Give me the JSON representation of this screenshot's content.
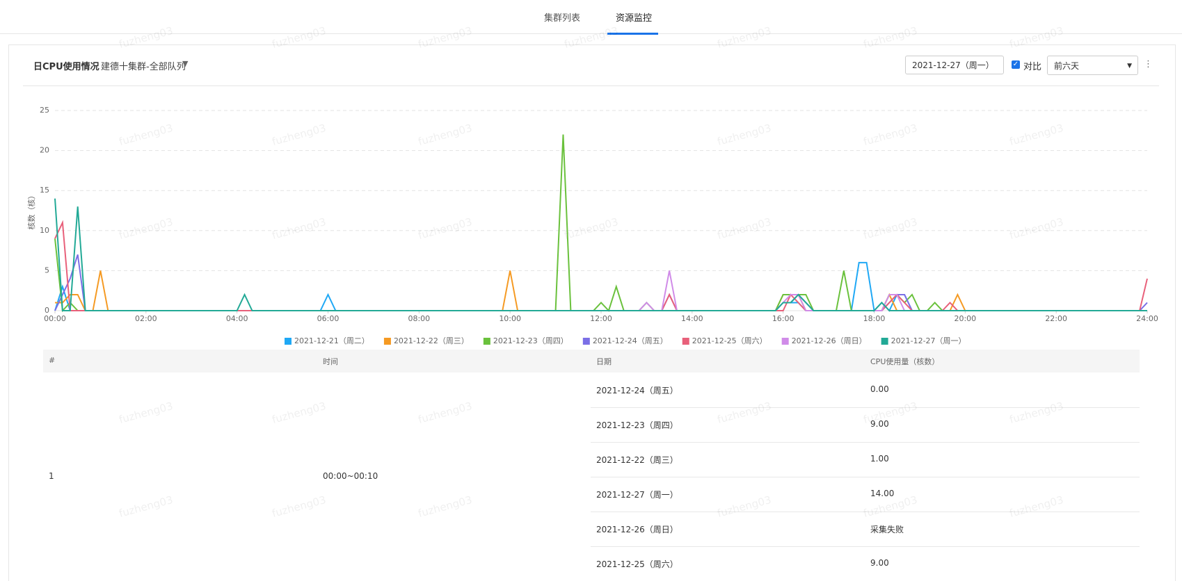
{
  "tabs": [
    "集群列表",
    "资源监控"
  ],
  "card": {
    "title": "日CPU使用情况",
    "subtitle": "建德十集群-全部队列",
    "date": "2021-12-27（周一）",
    "compare": "对比",
    "range": "前六天"
  },
  "watermark": "fuzheng03",
  "chart_data": {
    "type": "line",
    "y_label": "核数（核）",
    "ylim": [
      0,
      25
    ],
    "yticks": [
      0,
      5,
      10,
      15,
      20,
      25
    ],
    "grid": true,
    "xlim": [
      0,
      1440
    ],
    "xticks": [
      {
        "value": 0,
        "label": "00:00"
      },
      {
        "value": 120,
        "label": "02:00"
      },
      {
        "value": 240,
        "label": "04:00"
      },
      {
        "value": 360,
        "label": "06:00"
      },
      {
        "value": 480,
        "label": "08:00"
      },
      {
        "value": 600,
        "label": "10:00"
      },
      {
        "value": 720,
        "label": "12:00"
      },
      {
        "value": 840,
        "label": "14:00"
      },
      {
        "value": 960,
        "label": "16:00"
      },
      {
        "value": 1080,
        "label": "18:00"
      },
      {
        "value": 1200,
        "label": "20:00"
      },
      {
        "value": 1320,
        "label": "22:00"
      },
      {
        "value": 1440,
        "label": "24:00"
      }
    ],
    "series": [
      {
        "name": "2021-12-21（周二）",
        "color": "#1fa8f5",
        "x": [
          0,
          10,
          20,
          350,
          360,
          370,
          950,
          960,
          970,
          980,
          990,
          1050,
          1060,
          1070,
          1080,
          1090,
          1100,
          1110,
          1120,
          1130,
          1440
        ],
        "values": [
          0,
          3,
          0,
          0,
          2,
          0,
          0,
          1,
          1,
          1,
          0,
          0,
          6,
          6,
          0,
          1,
          0,
          2,
          2,
          0,
          0
        ]
      },
      {
        "name": "2021-12-22（周三）",
        "color": "#f59a23",
        "x": [
          0,
          10,
          20,
          30,
          40,
          50,
          60,
          70,
          590,
          600,
          610,
          950,
          960,
          970,
          980,
          990,
          1090,
          1100,
          1110,
          1180,
          1190,
          1200,
          1440
        ],
        "values": [
          1,
          1,
          2,
          2,
          0,
          0,
          5,
          0,
          0,
          5,
          0,
          0,
          2,
          2,
          2,
          0,
          0,
          2,
          0,
          0,
          2,
          0,
          0
        ]
      },
      {
        "name": "2021-12-23（周四）",
        "color": "#6ac13c",
        "x": [
          0,
          10,
          20,
          30,
          660,
          670,
          680,
          710,
          720,
          730,
          740,
          750,
          770,
          780,
          790,
          950,
          960,
          970,
          980,
          990,
          1000,
          1030,
          1040,
          1050,
          1090,
          1100,
          1110,
          1120,
          1130,
          1140,
          1150,
          1160,
          1170,
          1440
        ],
        "values": [
          9,
          0,
          1,
          0,
          0,
          22,
          0,
          0,
          1,
          0,
          3,
          0,
          0,
          1,
          0,
          0,
          2,
          2,
          2,
          2,
          0,
          0,
          5,
          0,
          0,
          2,
          2,
          1,
          2,
          0,
          0,
          1,
          0,
          0
        ]
      },
      {
        "name": "2021-12-24（周五）",
        "color": "#7b6fe6",
        "x": [
          0,
          10,
          20,
          30,
          40,
          800,
          810,
          820,
          950,
          960,
          970,
          980,
          990,
          1000,
          1090,
          1100,
          1110,
          1120,
          1130,
          1430,
          1440
        ],
        "values": [
          0,
          2,
          4,
          7,
          0,
          0,
          2,
          0,
          0,
          1,
          1,
          2,
          1,
          0,
          0,
          1,
          2,
          2,
          0,
          0,
          1
        ]
      },
      {
        "name": "2021-12-25（周六）",
        "color": "#e8607a",
        "x": [
          0,
          10,
          20,
          800,
          810,
          820,
          960,
          970,
          980,
          990,
          1090,
          1100,
          1110,
          1120,
          1130,
          1170,
          1180,
          1190,
          1430,
          1440
        ],
        "values": [
          9,
          11,
          0,
          0,
          2,
          0,
          0,
          2,
          1,
          0,
          0,
          1,
          2,
          1,
          0,
          0,
          1,
          0,
          0,
          4
        ]
      },
      {
        "name": "2021-12-26（周日）",
        "color": "#d08be8",
        "x": [
          770,
          780,
          790,
          800,
          810,
          820,
          950,
          960,
          970,
          980,
          990,
          1090,
          1100,
          1110,
          1120,
          1440
        ],
        "values": [
          0,
          1,
          0,
          0,
          5,
          0,
          0,
          1,
          2,
          2,
          0,
          0,
          2,
          2,
          0,
          0
        ]
      },
      {
        "name": "2021-12-27（周一）",
        "color": "#22a996",
        "x": [
          0,
          10,
          20,
          30,
          40,
          240,
          250,
          260,
          950,
          960,
          970,
          980,
          990,
          1000,
          1080,
          1090,
          1100,
          1440
        ],
        "values": [
          14,
          0,
          0,
          13,
          0,
          0,
          2,
          0,
          0,
          1,
          1,
          2,
          1,
          0,
          0,
          1,
          0,
          0
        ]
      }
    ]
  },
  "table": {
    "headers": [
      "#",
      "时间",
      "日期",
      "CPU使用量（核数）"
    ],
    "rows": [
      {
        "index": "1",
        "time": "00:00~00:10",
        "entries": [
          [
            "2021-12-24（周五）",
            "0.00"
          ],
          [
            "2021-12-23（周四）",
            "9.00"
          ],
          [
            "2021-12-22（周三）",
            "1.00"
          ],
          [
            "2021-12-27（周一）",
            "14.00"
          ],
          [
            "2021-12-26（周日）",
            "采集失败"
          ],
          [
            "2021-12-25（周六）",
            "9.00"
          ]
        ]
      }
    ]
  }
}
